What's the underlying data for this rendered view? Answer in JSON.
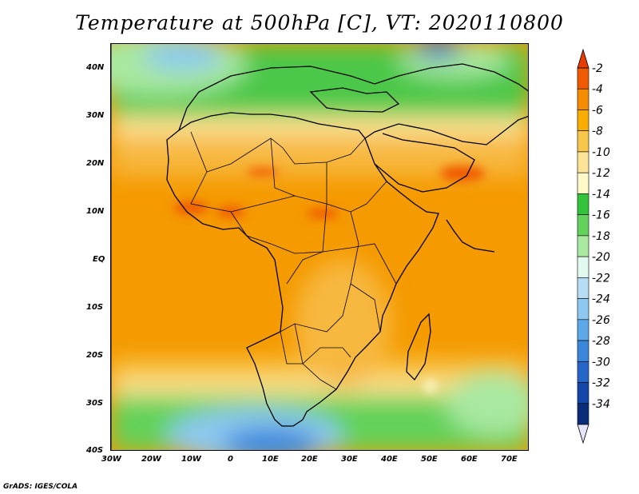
{
  "title": "Temperature at 500hPa [C], VT: 2020110800",
  "footer": "GrADS: IGES/COLA",
  "map": {
    "lon_range": [
      -30,
      75
    ],
    "lat_range": [
      -40,
      45
    ],
    "x_ticks": [
      "30W",
      "20W",
      "10W",
      "0",
      "10E",
      "20E",
      "30E",
      "40E",
      "50E",
      "60E",
      "70E"
    ],
    "y_ticks": [
      "40N",
      "30N",
      "20N",
      "10N",
      "EQ",
      "10S",
      "20S",
      "30S",
      "40S"
    ]
  },
  "colorbar": {
    "labels": [
      "-2",
      "-4",
      "-6",
      "-8",
      "-10",
      "-12",
      "-14",
      "-16",
      "-18",
      "-20",
      "-22",
      "-24",
      "-26",
      "-28",
      "-30",
      "-32",
      "-34"
    ],
    "colors": [
      "#f05a00",
      "#f58c00",
      "#f8ad00",
      "#f7c64a",
      "#fde395",
      "#fff8c8",
      "#33c43b",
      "#63d25a",
      "#a8e8a0",
      "#e2f9f0",
      "#b7ddf4",
      "#8cc8ef",
      "#5ca8e8",
      "#3b87dc",
      "#2566c9",
      "#1447a9",
      "#0a2d7a",
      "#e4e4fa"
    ],
    "top_arrow_color": "#e83d00",
    "bottom_arrow_color": "#e4e4fa"
  }
}
